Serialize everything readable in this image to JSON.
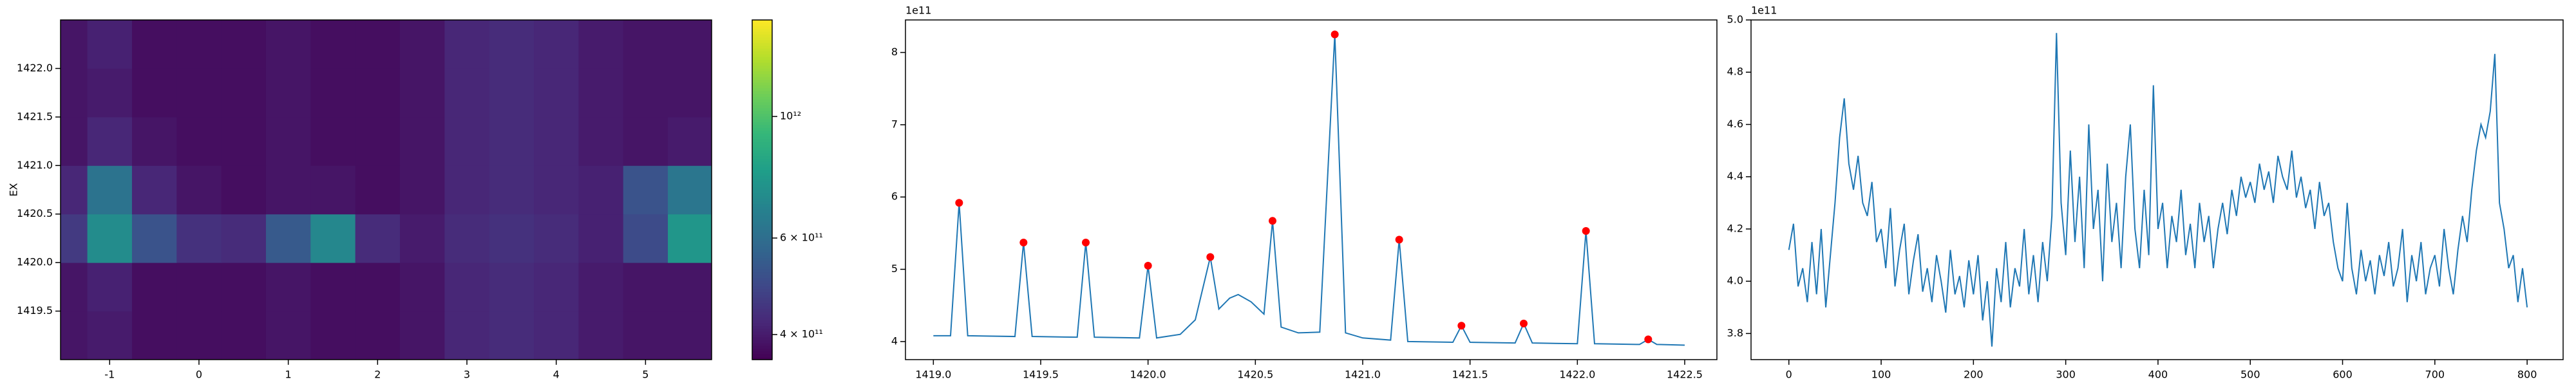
{
  "chart_data": [
    {
      "type": "heatmap",
      "colormap": "viridis",
      "ylabel": "EX",
      "x_edges": [
        -1.55,
        -1.25,
        -0.75,
        -0.25,
        0.25,
        0.75,
        1.25,
        1.75,
        2.25,
        2.75,
        3.25,
        3.75,
        4.25,
        4.75,
        5.25,
        5.74
      ],
      "y_edges": [
        1419.0,
        1419.5,
        1420.0,
        1420.5,
        1421.0,
        1421.5,
        1422.0,
        1422.5
      ],
      "z": [
        [
          390000000000.0,
          400000000000.0,
          380000000000.0,
          380000000000.0,
          380000000000.0,
          390000000000.0,
          380000000000.0,
          380000000000.0,
          390000000000.0,
          420000000000.0,
          430000000000.0,
          420000000000.0,
          400000000000.0,
          390000000000.0,
          390000000000.0
        ],
        [
          390000000000.0,
          410000000000.0,
          380000000000.0,
          380000000000.0,
          380000000000.0,
          390000000000.0,
          380000000000.0,
          380000000000.0,
          390000000000.0,
          420000000000.0,
          430000000000.0,
          420000000000.0,
          400000000000.0,
          390000000000.0,
          390000000000.0
        ],
        [
          460000000000.0,
          720000000000.0,
          520000000000.0,
          440000000000.0,
          430000000000.0,
          540000000000.0,
          700000000000.0,
          430000000000.0,
          400000000000.0,
          430000000000.0,
          440000000000.0,
          430000000000.0,
          410000000000.0,
          500000000000.0,
          760000000000.0
        ],
        [
          420000000000.0,
          620000000000.0,
          420000000000.0,
          390000000000.0,
          380000000000.0,
          390000000000.0,
          390000000000.0,
          380000000000.0,
          390000000000.0,
          420000000000.0,
          430000000000.0,
          420000000000.0,
          410000000000.0,
          520000000000.0,
          630000000000.0
        ],
        [
          390000000000.0,
          420000000000.0,
          390000000000.0,
          380000000000.0,
          380000000000.0,
          390000000000.0,
          380000000000.0,
          380000000000.0,
          390000000000.0,
          420000000000.0,
          430000000000.0,
          420000000000.0,
          400000000000.0,
          390000000000.0,
          400000000000.0
        ],
        [
          390000000000.0,
          400000000000.0,
          380000000000.0,
          380000000000.0,
          380000000000.0,
          390000000000.0,
          380000000000.0,
          380000000000.0,
          390000000000.0,
          420000000000.0,
          430000000000.0,
          420000000000.0,
          400000000000.0,
          390000000000.0,
          390000000000.0
        ],
        [
          390000000000.0,
          410000000000.0,
          380000000000.0,
          380000000000.0,
          380000000000.0,
          390000000000.0,
          380000000000.0,
          380000000000.0,
          390000000000.0,
          420000000000.0,
          430000000000.0,
          420000000000.0,
          400000000000.0,
          390000000000.0,
          390000000000.0
        ]
      ],
      "xlim": [
        -1.55,
        5.74
      ],
      "ylim": [
        1419.0,
        1422.5
      ],
      "xticks": [
        -1,
        0,
        1,
        2,
        3,
        4,
        5
      ],
      "yticks": [
        1419.5,
        {
          "value": 1420,
          "label": "1420.0"
        },
        1420.5,
        {
          "value": 1421,
          "label": "1421.0"
        },
        1421.5,
        {
          "value": 1422,
          "label": "1422.0"
        }
      ],
      "colorbar": {
        "scale": "log",
        "lim": [
          360000000000.0,
          1500000000000.0
        ],
        "ticks": [
          {
            "value": 400000000000.0,
            "label": "4 × 10¹¹"
          },
          {
            "value": 600000000000.0,
            "label": "6 × 10¹¹"
          },
          {
            "value": 1000000000000.0,
            "label": "10¹²"
          }
        ]
      }
    },
    {
      "type": "line",
      "color": "#1f77b4",
      "offset_label": "1e11",
      "x": [
        1419.0,
        1419.08,
        1419.12,
        1419.16,
        1419.38,
        1419.42,
        1419.46,
        1419.67,
        1419.71,
        1419.75,
        1419.96,
        1420.0,
        1420.04,
        1420.15,
        1420.22,
        1420.29,
        1420.33,
        1420.38,
        1420.42,
        1420.48,
        1420.54,
        1420.58,
        1420.62,
        1420.7,
        1420.8,
        1420.87,
        1420.92,
        1421.0,
        1421.13,
        1421.17,
        1421.21,
        1421.42,
        1421.46,
        1421.5,
        1421.71,
        1421.75,
        1421.79,
        1422.0,
        1422.04,
        1422.08,
        1422.29,
        1422.33,
        1422.37,
        1422.5
      ],
      "values": [
        4.08,
        4.08,
        5.92,
        4.08,
        4.07,
        5.37,
        4.07,
        4.06,
        5.37,
        4.06,
        4.05,
        5.05,
        4.05,
        4.1,
        4.3,
        5.17,
        4.45,
        4.6,
        4.65,
        4.55,
        4.38,
        5.67,
        4.2,
        4.12,
        4.13,
        8.25,
        4.12,
        4.05,
        4.02,
        5.41,
        4.0,
        3.99,
        4.22,
        3.99,
        3.98,
        4.25,
        3.98,
        3.97,
        5.53,
        3.97,
        3.96,
        4.03,
        3.96,
        3.95
      ],
      "peaks": {
        "color": "red",
        "x": [
          1419.12,
          1419.42,
          1419.71,
          1420.0,
          1420.29,
          1420.58,
          1420.87,
          1421.17,
          1421.46,
          1421.75,
          1422.04,
          1422.33
        ],
        "values": [
          5.92,
          5.37,
          5.37,
          5.05,
          5.17,
          5.67,
          8.25,
          5.41,
          4.22,
          4.25,
          5.53,
          4.03
        ]
      },
      "xlim": [
        1418.87,
        1422.65
      ],
      "ylim": [
        3.75,
        8.45
      ],
      "xticks": [
        {
          "value": 1419,
          "label": "1419.0"
        },
        1419.5,
        {
          "value": 1420,
          "label": "1420.0"
        },
        1420.5,
        {
          "value": 1421,
          "label": "1421.0"
        },
        1421.5,
        {
          "value": 1422,
          "label": "1422.0"
        },
        1422.5
      ],
      "yticks": [
        4,
        5,
        6,
        7,
        8
      ]
    },
    {
      "type": "line",
      "color": "#1f77b4",
      "offset_label": "1e11",
      "x": [
        0,
        5,
        10,
        15,
        20,
        25,
        30,
        35,
        40,
        45,
        50,
        55,
        60,
        65,
        70,
        75,
        80,
        85,
        90,
        95,
        100,
        105,
        110,
        115,
        120,
        125,
        130,
        135,
        140,
        145,
        150,
        155,
        160,
        165,
        170,
        175,
        180,
        185,
        190,
        195,
        200,
        205,
        210,
        215,
        220,
        225,
        230,
        235,
        240,
        245,
        250,
        255,
        260,
        265,
        270,
        275,
        280,
        285,
        290,
        295,
        300,
        305,
        310,
        315,
        320,
        325,
        330,
        335,
        340,
        345,
        350,
        355,
        360,
        365,
        370,
        375,
        380,
        385,
        390,
        395,
        400,
        405,
        410,
        415,
        420,
        425,
        430,
        435,
        440,
        445,
        450,
        455,
        460,
        465,
        470,
        475,
        480,
        485,
        490,
        495,
        500,
        505,
        510,
        515,
        520,
        525,
        530,
        535,
        540,
        545,
        550,
        555,
        560,
        565,
        570,
        575,
        580,
        585,
        590,
        595,
        600,
        605,
        610,
        615,
        620,
        625,
        630,
        635,
        640,
        645,
        650,
        655,
        660,
        665,
        670,
        675,
        680,
        685,
        690,
        695,
        700,
        705,
        710,
        715,
        720,
        725,
        730,
        735,
        740,
        745,
        750,
        755,
        760,
        765,
        770,
        775,
        780,
        785,
        790,
        795,
        800
      ],
      "values": [
        4.12,
        4.22,
        3.98,
        4.05,
        3.92,
        4.15,
        3.95,
        4.2,
        3.9,
        4.1,
        4.3,
        4.55,
        4.7,
        4.45,
        4.35,
        4.48,
        4.3,
        4.25,
        4.38,
        4.15,
        4.2,
        4.05,
        4.28,
        3.98,
        4.12,
        4.22,
        3.95,
        4.08,
        4.18,
        3.96,
        4.05,
        3.92,
        4.1,
        4.0,
        3.88,
        4.12,
        3.95,
        4.02,
        3.9,
        4.08,
        3.95,
        4.1,
        3.85,
        4.0,
        3.75,
        4.05,
        3.92,
        4.15,
        3.9,
        4.05,
        3.98,
        4.2,
        3.95,
        4.1,
        3.92,
        4.15,
        4.0,
        4.25,
        4.95,
        4.3,
        4.1,
        4.5,
        4.15,
        4.4,
        4.05,
        4.6,
        4.2,
        4.35,
        4.0,
        4.45,
        4.15,
        4.3,
        4.05,
        4.4,
        4.6,
        4.2,
        4.05,
        4.35,
        4.1,
        4.75,
        4.2,
        4.3,
        4.05,
        4.25,
        4.15,
        4.35,
        4.1,
        4.22,
        4.05,
        4.3,
        4.15,
        4.25,
        4.05,
        4.2,
        4.3,
        4.18,
        4.35,
        4.25,
        4.4,
        4.32,
        4.38,
        4.3,
        4.45,
        4.35,
        4.42,
        4.3,
        4.48,
        4.4,
        4.35,
        4.5,
        4.32,
        4.4,
        4.28,
        4.35,
        4.2,
        4.38,
        4.25,
        4.3,
        4.15,
        4.05,
        4.0,
        4.3,
        4.05,
        3.95,
        4.12,
        4.0,
        4.08,
        3.95,
        4.1,
        4.02,
        4.15,
        3.98,
        4.05,
        4.2,
        3.92,
        4.1,
        4.0,
        4.15,
        3.95,
        4.05,
        4.1,
        3.98,
        4.2,
        4.05,
        3.95,
        4.12,
        4.25,
        4.15,
        4.35,
        4.5,
        4.6,
        4.55,
        4.65,
        4.87,
        4.3,
        4.2,
        4.05,
        4.1,
        3.92,
        4.05,
        3.9
      ],
      "xlim": [
        -41,
        839
      ],
      "ylim": [
        3.7,
        5.0
      ],
      "xticks": [
        0,
        100,
        200,
        300,
        400,
        500,
        600,
        700,
        800
      ],
      "yticks": [
        3.8,
        {
          "value": 4.0,
          "label": "4.0"
        },
        4.2,
        4.4,
        4.6,
        4.8,
        {
          "value": 5.0,
          "label": "5.0"
        }
      ]
    }
  ]
}
